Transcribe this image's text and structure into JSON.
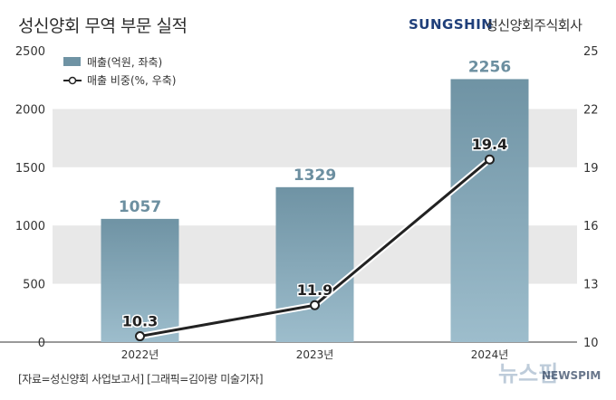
{
  "header": {
    "title": "성신양회 무역 부문 실적",
    "brand_en": "SUNGSHIN",
    "brand_ko": "성신양회주식회사"
  },
  "footer": {
    "source": "[자료=성신양회 사업보고서] [그래픽=김아랑 미술기자]",
    "watermark_logo": "뉴스핌",
    "watermark_text": "NEWSPIM"
  },
  "colors": {
    "bar_top": "#6f93a4",
    "bar_bottom": "#9dbdcc",
    "line": "#222222",
    "band": "#e8e8e8"
  },
  "chart_data": {
    "type": "bar",
    "title": "성신양회 무역 부문 실적",
    "categories": [
      "2022년",
      "2023년",
      "2024년"
    ],
    "series": [
      {
        "name": "매출(억원, 좌축)",
        "type": "bar",
        "axis": "left",
        "values": [
          1057,
          1329,
          2256
        ]
      },
      {
        "name": "매출 비중(%, 우축)",
        "type": "line",
        "axis": "right",
        "values": [
          10.3,
          11.9,
          19.4
        ]
      }
    ],
    "y_left": {
      "min": 0,
      "max": 2500,
      "ticks": [
        0,
        500,
        1000,
        1500,
        2000,
        2500
      ]
    },
    "y_right": {
      "min": 10,
      "max": 25,
      "ticks": [
        10,
        13,
        16,
        19,
        22,
        25
      ]
    },
    "legend_position": "top-left",
    "grid": "alternating horizontal bands"
  }
}
